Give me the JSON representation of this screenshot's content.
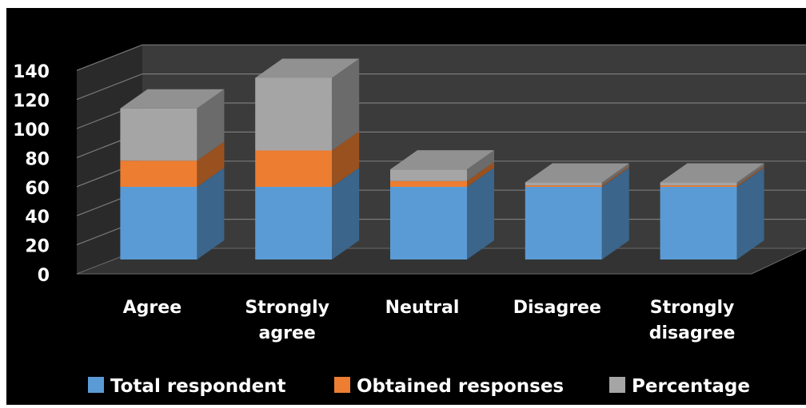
{
  "chart_data": {
    "type": "bar",
    "stacked": true,
    "style_3d": true,
    "categories": [
      "Agree",
      "Strongly agree",
      "Neutral",
      "Disagree",
      "Strongly disagree"
    ],
    "category_lines": [
      [
        "Agree"
      ],
      [
        "Strongly",
        "agree"
      ],
      [
        "Neutral"
      ],
      [
        "Disagree"
      ],
      [
        "Strongly",
        "disagree"
      ]
    ],
    "series": [
      {
        "name": "Total respondent",
        "values": [
          50,
          50,
          50,
          50,
          50
        ],
        "color": "#5b9bd5"
      },
      {
        "name": "Obtained responses",
        "values": [
          18,
          25,
          4,
          1,
          1
        ],
        "color": "#ed7d31"
      },
      {
        "name": "Percentage",
        "values": [
          36,
          50,
          8,
          2,
          2
        ],
        "color": "#a5a5a5"
      }
    ],
    "y_ticks": [
      "0",
      "20",
      "40",
      "60",
      "80",
      "100",
      "120",
      "140"
    ],
    "ylim": [
      0,
      140
    ],
    "grid": true,
    "legend_position": "bottom",
    "background_color": "#000000",
    "text_color": "#ffffff"
  }
}
